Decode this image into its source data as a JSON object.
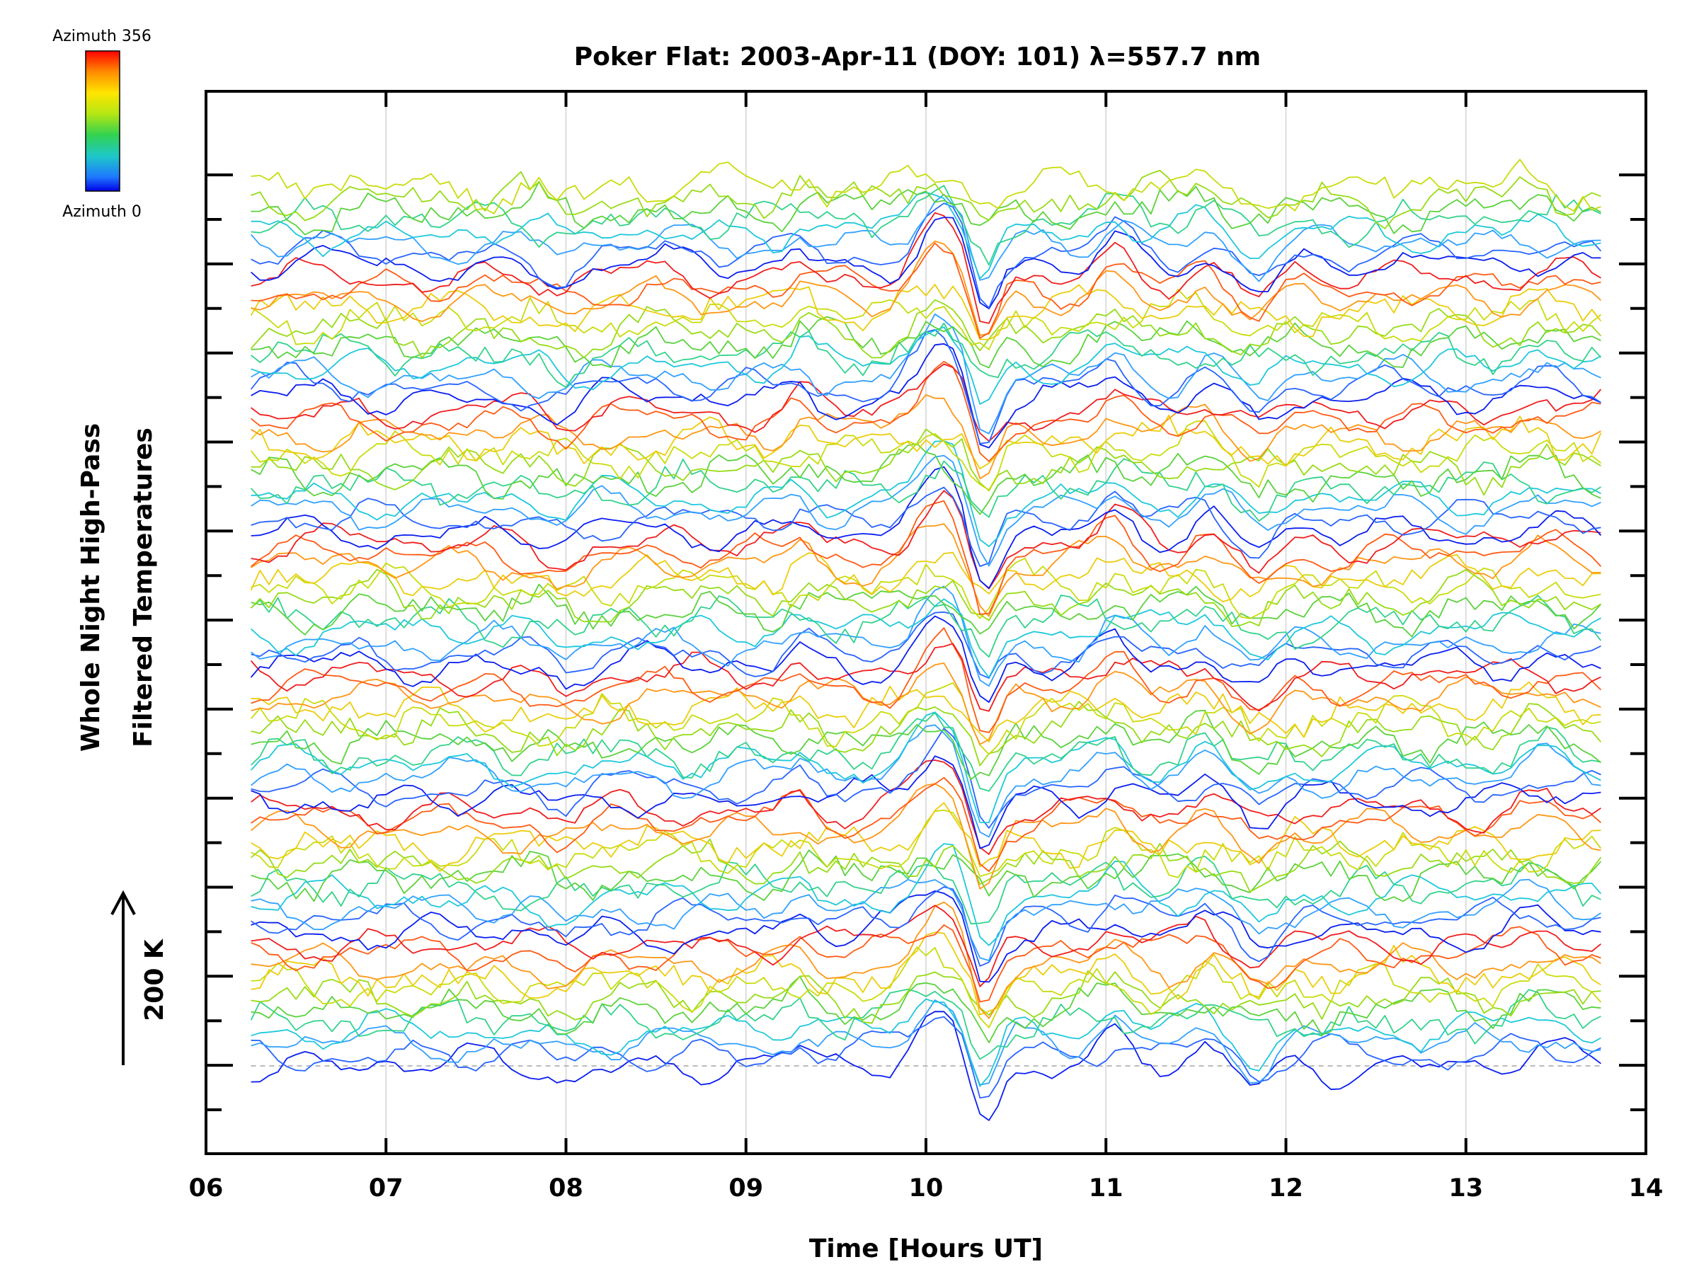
{
  "chart_data": {
    "type": "line",
    "title": "Poker Flat: 2003-Apr-11 (DOY: 101) λ=557.7 nm",
    "xlabel": "Time [Hours UT]",
    "ylabel_lines": [
      "Whole Night High-Pass",
      "Filtered Temperatures"
    ],
    "scale_label": "200 K",
    "x_ticks": [
      "06",
      "07",
      "08",
      "09",
      "10",
      "11",
      "12",
      "13",
      "14"
    ],
    "xlim": [
      6,
      14
    ],
    "x_range_data": [
      6.25,
      13.75
    ],
    "grid": "vertical gridlines at each hour",
    "baseline": "dashed line at lowest trace offset",
    "colorbar": {
      "top_label": "Azimuth 356",
      "bottom_label": "Azimuth 0",
      "colormap": "rainbow (blue = 0 → red = 356)",
      "colors": [
        "#ff0000",
        "#ff8c00",
        "#ffe600",
        "#b4e614",
        "#32d250",
        "#1ec8c8",
        "#1e78ff",
        "#0000e6"
      ]
    },
    "traces": {
      "count": 80,
      "azimuth_cycle": [
        "#0a1ef0",
        "#2864ff",
        "#32a0ff",
        "#1ec8dc",
        "#32d28c",
        "#5ad23c",
        "#96dc14",
        "#c8dc0a",
        "#ebcd0a",
        "#ff9614",
        "#ff5a14",
        "#f01e1e"
      ],
      "stacked": true,
      "common_event_time": 10.2,
      "notable_features": [
        "sharp dip near 10.2–10.3 UT across all traces",
        "secondary minimum near 11.85 UT",
        "peak near 10.1 UT"
      ]
    }
  }
}
